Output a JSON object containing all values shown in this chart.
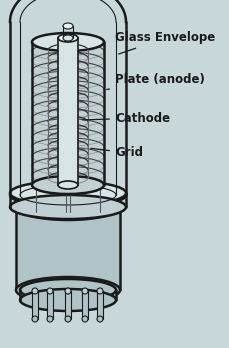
{
  "bg_color": "#c8d8da",
  "line_color": "#1a1a1a",
  "fill_outer": "#b0c4c8",
  "fill_mid": "#c0d0d3",
  "fill_light": "#d8e5e7",
  "fill_white": "#e8efef",
  "fill_dark": "#8090a0",
  "labels": {
    "glass_envelope": "Glass Envelope",
    "plate": "Plate (anode)",
    "cathode": "Cathode",
    "grid": "Grid"
  },
  "label_fontsize": 8.5,
  "label_font": "DejaVu Sans"
}
